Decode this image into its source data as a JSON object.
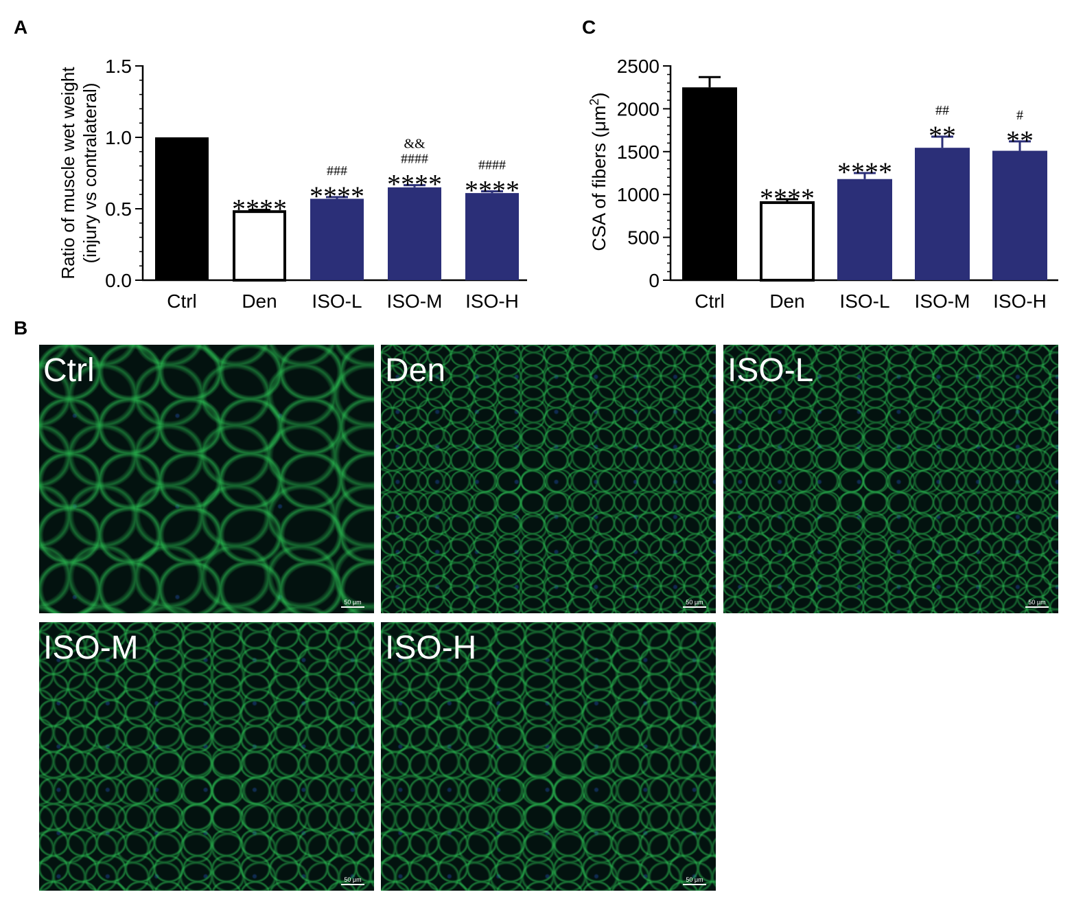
{
  "panel_labels": {
    "a": "A",
    "b": "B",
    "c": "C"
  },
  "chart_data": [
    {
      "type": "bar",
      "panel": "A",
      "ylabel": [
        "Ratio of muscle wet weight",
        "(injury vs contralateral)"
      ],
      "ylim": [
        0,
        1.5
      ],
      "yticks": [
        "0.0",
        "0.5",
        "1.0",
        "1.5"
      ],
      "categories": [
        "Ctrl",
        "Den",
        "ISO-L",
        "ISO-M",
        "ISO-H"
      ],
      "values": [
        1.0,
        0.48,
        0.57,
        0.65,
        0.61
      ],
      "errors": [
        0,
        0.012,
        0.012,
        0.015,
        0.012
      ],
      "colors": [
        "#000000",
        "#ffffff",
        "#2b2f78",
        "#2b2f78",
        "#2b2f78"
      ],
      "annotations": [
        [],
        [
          "****"
        ],
        [
          "****",
          "###"
        ],
        [
          "****",
          "####",
          "&&"
        ],
        [
          "****",
          "####"
        ]
      ]
    },
    {
      "type": "bar",
      "panel": "C",
      "ylabel": "CSA of fibers (μm²)",
      "ylabel_parts": {
        "main": "CSA of fibers (",
        "unit": "μm",
        "sup": "2",
        "close": ")"
      },
      "ylim": [
        0,
        2500
      ],
      "yticks": [
        "0",
        "500",
        "1000",
        "1500",
        "2000",
        "2500"
      ],
      "categories": [
        "Ctrl",
        "Den",
        "ISO-L",
        "ISO-M",
        "ISO-H"
      ],
      "values": [
        2250,
        905,
        1180,
        1545,
        1510
      ],
      "errors": [
        120,
        40,
        70,
        130,
        110
      ],
      "colors": [
        "#000000",
        "#ffffff",
        "#2b2f78",
        "#2b2f78",
        "#2b2f78"
      ],
      "annotations": [
        [],
        [
          "****"
        ],
        [
          "****"
        ],
        [
          "**",
          "##"
        ],
        [
          "**",
          "#"
        ]
      ]
    }
  ],
  "micrographs": [
    {
      "label": "Ctrl",
      "scale": "50 μm",
      "fiber": "large"
    },
    {
      "label": "Den",
      "scale": "50 μm",
      "fiber": "small"
    },
    {
      "label": "ISO-L",
      "scale": "50 μm",
      "fiber": "small"
    },
    {
      "label": "ISO-M",
      "scale": "50 μm",
      "fiber": "medium"
    },
    {
      "label": "ISO-H",
      "scale": "50 μm",
      "fiber": "medium"
    }
  ],
  "colors": {
    "bar_iso": "#2b2f78",
    "bar_ctrl": "#000000",
    "membrane": "#2fd35a",
    "background": "#03120f"
  }
}
